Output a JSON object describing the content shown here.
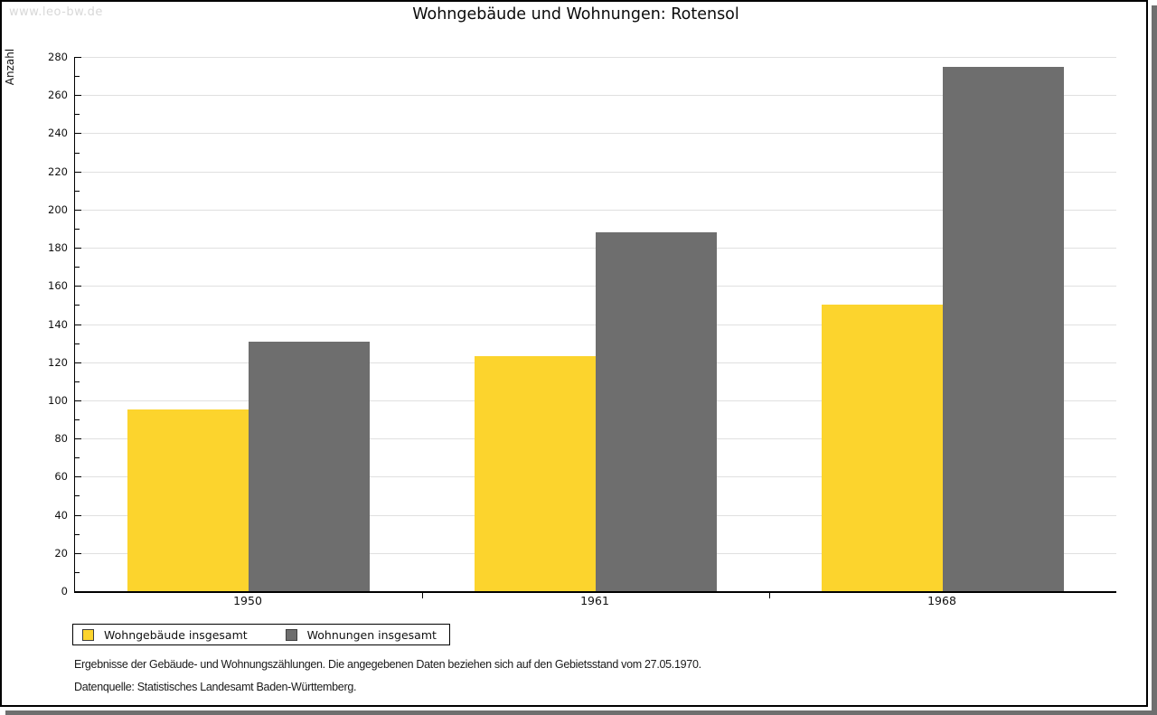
{
  "watermark": "www.leo-bw.de",
  "title": "Wohngebäude und Wohnungen: Rotensol",
  "chart_data": {
    "type": "bar",
    "title": "Wohngebäude und Wohnungen: Rotensol",
    "categories": [
      "1950",
      "1961",
      "1968"
    ],
    "series": [
      {
        "name": "Wohngebäude insgesamt",
        "color": "#fcd42d",
        "values": [
          95,
          123,
          150
        ]
      },
      {
        "name": "Wohnungen insgesamt",
        "color": "#6e6e6e",
        "values": [
          131,
          188,
          275
        ]
      }
    ],
    "xlabel": "",
    "ylabel": "Anzahl",
    "ylim": [
      0,
      280
    ],
    "ytick_major": 20,
    "ytick_minor": 10,
    "grid": true,
    "gridline_color": "#e0e0e0",
    "legend_position": "bottom-left"
  },
  "footnotes": {
    "line1": "Ergebnisse der Gebäude- und Wohnungszählungen. Die angegebenen Daten beziehen sich auf den Gebietsstand vom 27.05.1970.",
    "line2": "Datenquelle: Statistisches Landesamt Baden-Württemberg."
  }
}
